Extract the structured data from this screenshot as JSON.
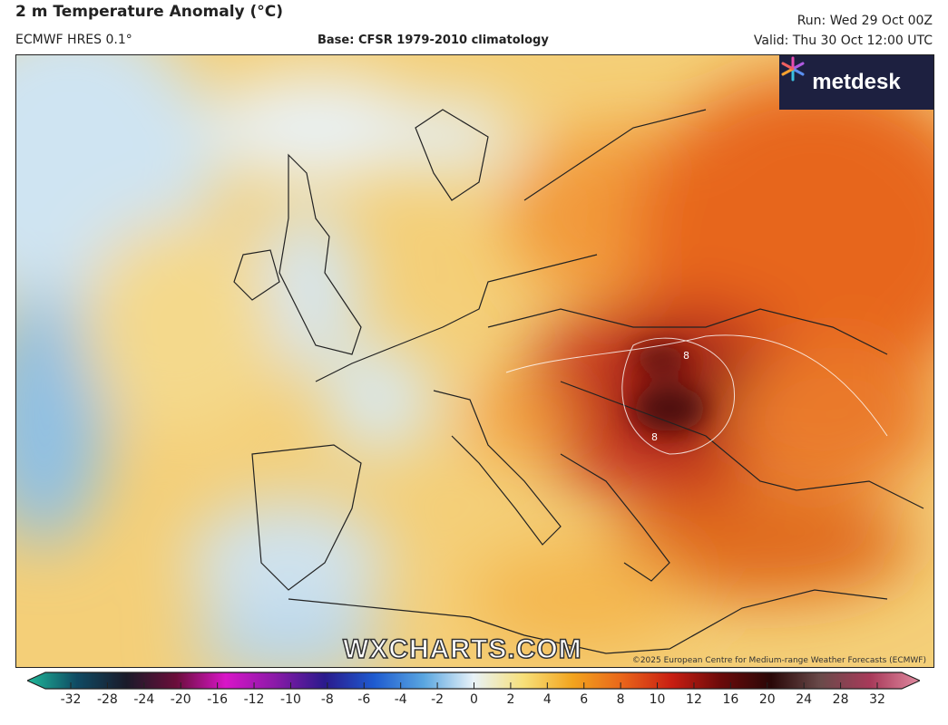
{
  "header": {
    "title": "2 m Temperature Anomaly (°C)",
    "model": "ECMWF HRES 0.1°",
    "base": "Base: CFSR 1979-2010 climatology",
    "run": "Run: Wed 29 Oct 00Z",
    "valid": "Valid: Thu 30 Oct 12:00 UTC"
  },
  "logo": {
    "text": "metdesk",
    "icon": "metdesk-burst-icon"
  },
  "watermark": "WXCHARTS.COM",
  "copyright": "©2025 European Centre for Medium-range Weather Forecasts (ECMWF)",
  "contour_label": "8",
  "colorbar": {
    "ticks": [
      "-32",
      "-28",
      "-24",
      "-20",
      "-16",
      "-12",
      "-10",
      "-8",
      "-6",
      "-4",
      "-2",
      "0",
      "2",
      "4",
      "6",
      "8",
      "10",
      "12",
      "16",
      "20",
      "24",
      "28",
      "32"
    ],
    "colors": [
      "#1fb99a",
      "#0f4a63",
      "#1a1a2a",
      "#6a0e3a",
      "#d815c8",
      "#8a1aa8",
      "#2a1a8c",
      "#1e5bd0",
      "#5aa6e0",
      "#e8f2f8",
      "#f7e07a",
      "#f2a41e",
      "#e9651a",
      "#c81e12",
      "#6a0a0a",
      "#2a0808",
      "#6a4a4a",
      "#a83a5a",
      "#e08aa0"
    ]
  }
}
